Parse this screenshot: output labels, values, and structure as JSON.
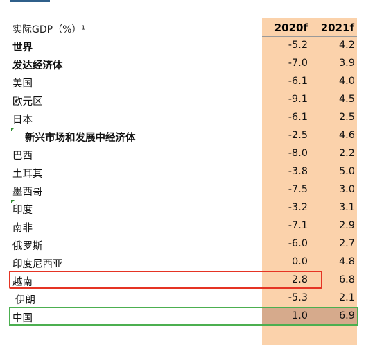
{
  "table": {
    "header_label": "实际GDP（%）¹",
    "columns": [
      "2020f",
      "2021f"
    ],
    "rows": [
      {
        "label": "世界",
        "v2020": "-5.2",
        "v2021": "4.2",
        "bold": true
      },
      {
        "label": "发达经济体",
        "v2020": "-7.0",
        "v2021": "3.9",
        "bold": true
      },
      {
        "label": "美国",
        "v2020": "-6.1",
        "v2021": "4.0"
      },
      {
        "label": "欧元区",
        "v2020": "-9.1",
        "v2021": "4.5"
      },
      {
        "label": "日本",
        "v2020": "-6.1",
        "v2021": "2.5"
      },
      {
        "label": "新兴市场和发展中经济体",
        "v2020": "-2.5",
        "v2021": "4.6",
        "bold": true,
        "indent": true,
        "marker": true
      },
      {
        "label": "巴西",
        "v2020": "-8.0",
        "v2021": "2.2"
      },
      {
        "label": "土耳其",
        "v2020": "-3.8",
        "v2021": "5.0"
      },
      {
        "label": "墨西哥",
        "v2020": "-7.5",
        "v2021": "3.0"
      },
      {
        "label": "印度",
        "v2020": "-3.2",
        "v2021": "3.1",
        "marker": true
      },
      {
        "label": "南非",
        "v2020": "-7.1",
        "v2021": "2.9"
      },
      {
        "label": "俄罗斯",
        "v2020": "-6.0",
        "v2021": "2.7"
      },
      {
        "label": "印度尼西亚",
        "v2020": "0.0",
        "v2021": "4.8"
      },
      {
        "label": "越南",
        "v2020": "2.8",
        "v2021": "6.8",
        "highlight": "red"
      },
      {
        "label": "伊朗",
        "v2020": "-5.3",
        "v2021": "2.1",
        "indent2": true
      },
      {
        "label": "中国",
        "v2020": "1.0",
        "v2021": "6.9",
        "highlight": "green"
      }
    ]
  },
  "colors": {
    "column_shade": "#fbd2ab",
    "china_cell": "#d6aa8c",
    "red_highlight": "#e53424",
    "green_highlight": "#4caf50"
  }
}
